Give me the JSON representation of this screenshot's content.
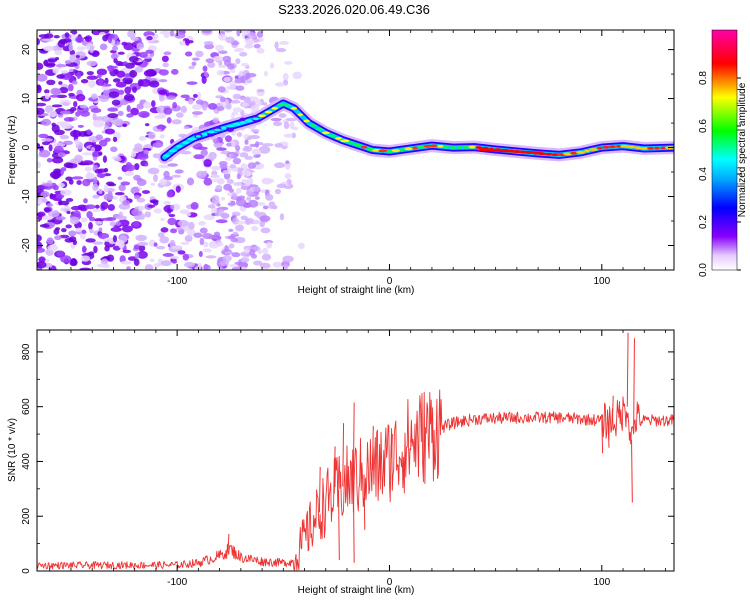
{
  "title": "S233.2026.020.06.49.C36",
  "chart_data": [
    {
      "type": "heatmap",
      "xlabel": "Height of straight line (km)",
      "ylabel": "Frequency (Hz)",
      "xlim": [
        -166,
        134
      ],
      "ylim": [
        -25,
        24
      ],
      "xticks": [
        -100,
        0,
        100
      ],
      "yticks": [
        -20,
        -10,
        0,
        10,
        20
      ],
      "colorbar": {
        "label": "Normalized spectral amplitude",
        "range": [
          0,
          1
        ],
        "ticks": [
          0.0,
          0.2,
          0.4,
          0.6,
          0.8
        ],
        "colors": [
          "#ffffff",
          "#8800ff",
          "#0000ff",
          "#00ffff",
          "#00ff00",
          "#ffff00",
          "#ff0000",
          "#ff00aa"
        ]
      },
      "ridge": {
        "x": [
          -106,
          -100,
          -92,
          -85,
          -78,
          -70,
          -62,
          -56,
          -50,
          -45,
          -38,
          -30,
          -22,
          -15,
          -8,
          0,
          10,
          20,
          30,
          40,
          50,
          60,
          70,
          80,
          90,
          100,
          110,
          120,
          134
        ],
        "y": [
          -2,
          0,
          2,
          3,
          4,
          5,
          6,
          7.5,
          9,
          8,
          5,
          3,
          1.5,
          0.5,
          -0.5,
          -0.8,
          -0.2,
          0.4,
          0,
          0.1,
          -0.4,
          -0.8,
          -1.2,
          -1.5,
          -1,
          0,
          0.3,
          -0.2,
          0
        ]
      }
    },
    {
      "type": "line",
      "xlabel": "Height of straight line (km)",
      "ylabel": "SNR (10 * v/v)",
      "xlim": [
        -166,
        134
      ],
      "ylim": [
        0,
        880
      ],
      "xticks": [
        -100,
        0,
        100
      ],
      "yticks": [
        0,
        200,
        400,
        600,
        800
      ],
      "color": "#ee3333",
      "envelope": {
        "x": [
          -166,
          -100,
          -90,
          -80,
          -75,
          -70,
          -60,
          -50,
          -45,
          -40,
          -35,
          -30,
          -25,
          -20,
          -15,
          -10,
          -5,
          0,
          5,
          10,
          15,
          20,
          30,
          40,
          60,
          80,
          90,
          100,
          105,
          108,
          110,
          112,
          114,
          116,
          118,
          120,
          134
        ],
        "y": [
          20,
          22,
          30,
          55,
          80,
          50,
          35,
          30,
          35,
          120,
          190,
          250,
          290,
          320,
          340,
          360,
          380,
          410,
          440,
          470,
          490,
          510,
          540,
          555,
          560,
          560,
          555,
          550,
          545,
          560,
          580,
          600,
          480,
          560,
          545,
          550,
          550
        ]
      },
      "spikes": [
        {
          "x": -76,
          "y": 135
        },
        {
          "x": -33,
          "y": 380
        },
        {
          "x": -26,
          "y": 455
        },
        {
          "x": -22,
          "y": 540
        },
        {
          "x": -17,
          "y": 615
        },
        {
          "x": -8,
          "y": 530
        },
        {
          "x": 1,
          "y": 500
        },
        {
          "x": 10,
          "y": 545
        },
        {
          "x": 105,
          "y": 640
        },
        {
          "x": 108,
          "y": 620
        },
        {
          "x": 112,
          "y": 870
        },
        {
          "x": 114,
          "y": 250
        },
        {
          "x": 115,
          "y": 850
        }
      ],
      "dips": [
        {
          "x": -24,
          "y": 40
        },
        {
          "x": -17,
          "y": 30
        },
        {
          "x": -12,
          "y": 150
        },
        {
          "x": 100,
          "y": 430
        },
        {
          "x": 103,
          "y": 450
        }
      ]
    }
  ]
}
